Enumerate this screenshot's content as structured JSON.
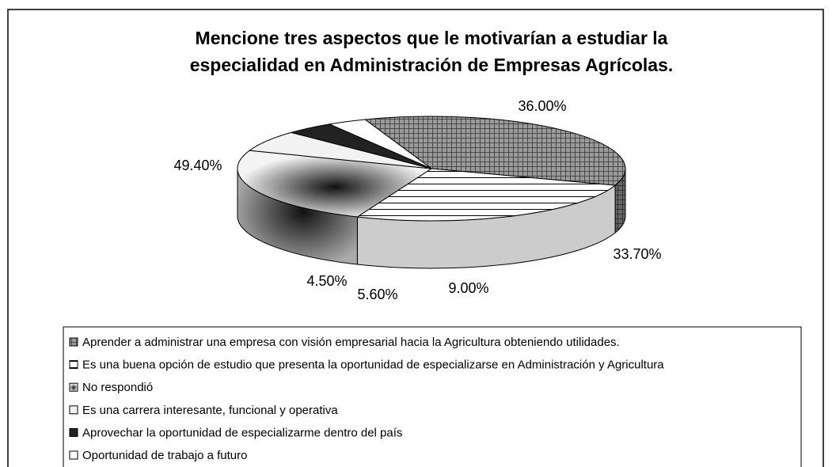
{
  "chart_data": {
    "type": "pie",
    "title": [
      "Mencione tres aspectos que le motivarían a estudiar la",
      "especialidad en Administración de Empresas Agrícolas."
    ],
    "categories": [
      "Aprender a administrar una empresa con visión empresarial hacia la Agricultura obteniendo utilidades.",
      "Es una buena opción de estudio que presenta la oportunidad de especializarse en Administración y Agricultura",
      "No respondió",
      "Es una carrera interesante, funcional y operativa",
      "Aprovechar la oportunidad de especializarme dentro del país",
      "Oportunidad de trabajo a futuro"
    ],
    "values": [
      49.4,
      36.0,
      33.7,
      9.0,
      5.6,
      4.5
    ],
    "value_labels": [
      "49.40%",
      "36.00%",
      "33.70%",
      "9.00%",
      "5.60%",
      "4.50%"
    ],
    "legend": "bottom"
  }
}
